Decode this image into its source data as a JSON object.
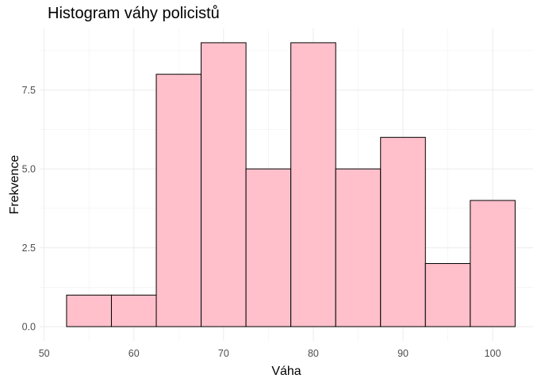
{
  "chart_data": {
    "type": "bar",
    "title": "Histogram váhy policistů",
    "xlabel": "Váha",
    "ylabel": "Frekvence",
    "bins": [
      {
        "start": 52.5,
        "end": 57.5,
        "count": 1
      },
      {
        "start": 57.5,
        "end": 62.5,
        "count": 1
      },
      {
        "start": 62.5,
        "end": 67.5,
        "count": 8
      },
      {
        "start": 67.5,
        "end": 72.5,
        "count": 9
      },
      {
        "start": 72.5,
        "end": 77.5,
        "count": 5
      },
      {
        "start": 77.5,
        "end": 82.5,
        "count": 9
      },
      {
        "start": 82.5,
        "end": 87.5,
        "count": 5
      },
      {
        "start": 87.5,
        "end": 92.5,
        "count": 6
      },
      {
        "start": 92.5,
        "end": 97.5,
        "count": 2
      },
      {
        "start": 97.5,
        "end": 102.5,
        "count": 4
      }
    ],
    "xticks": [
      50,
      60,
      70,
      80,
      90,
      100
    ],
    "xtick_labels": [
      "50",
      "60",
      "70",
      "80",
      "90",
      "100"
    ],
    "yticks": [
      0,
      2.5,
      5,
      7.5
    ],
    "ytick_labels": [
      "0.0",
      "2.5",
      "5.0",
      "7.5"
    ],
    "xlim": [
      49.5,
      104.5
    ],
    "ylim": [
      -0.45,
      9.45
    ],
    "grid": true,
    "legend": "none",
    "colors": {
      "bar_fill": "#ffc0cb",
      "bar_stroke": "#000000",
      "grid_major": "#ebebeb",
      "grid_minor": "#f4f4f4"
    }
  }
}
